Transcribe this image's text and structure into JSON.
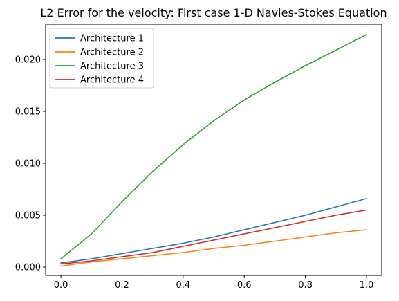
{
  "chart_data": {
    "type": "line",
    "title": "L2 Error for the velocity: First case 1-D Navies-Stokes Equation",
    "xlabel": "",
    "ylabel": "",
    "xlim": [
      -0.05,
      1.05
    ],
    "ylim": [
      -0.0008,
      0.0234
    ],
    "xticks": [
      0.0,
      0.2,
      0.4,
      0.6,
      0.8,
      1.0
    ],
    "xtick_labels": [
      "0.0",
      "0.2",
      "0.4",
      "0.6",
      "0.8",
      "1.0"
    ],
    "yticks": [
      0.0,
      0.005,
      0.01,
      0.015,
      0.02
    ],
    "ytick_labels": [
      "0.000",
      "0.005",
      "0.010",
      "0.015",
      "0.020"
    ],
    "grid": false,
    "legend_position": "top-left",
    "x": [
      0.0,
      0.1,
      0.2,
      0.3,
      0.4,
      0.5,
      0.6,
      0.7,
      0.8,
      0.9,
      1.0
    ],
    "series": [
      {
        "name": "Architecture 1",
        "color": "#1f77b4",
        "values": [
          0.0004,
          0.0008,
          0.0013,
          0.0018,
          0.0023,
          0.0029,
          0.0036,
          0.0043,
          0.005,
          0.0058,
          0.0066
        ]
      },
      {
        "name": "Architecture 2",
        "color": "#ff7f0e",
        "values": [
          0.0001,
          0.0005,
          0.0008,
          0.0011,
          0.0014,
          0.0018,
          0.0021,
          0.0025,
          0.0029,
          0.0033,
          0.0036
        ]
      },
      {
        "name": "Architecture 3",
        "color": "#2ca02c",
        "values": [
          0.0008,
          0.0032,
          0.0063,
          0.0092,
          0.0118,
          0.0141,
          0.0161,
          0.0178,
          0.0194,
          0.0209,
          0.0224
        ]
      },
      {
        "name": "Architecture 4",
        "color": "#d62728",
        "values": [
          0.0003,
          0.0006,
          0.001,
          0.0014,
          0.002,
          0.0026,
          0.0032,
          0.0038,
          0.0044,
          0.005,
          0.0055
        ]
      }
    ]
  }
}
